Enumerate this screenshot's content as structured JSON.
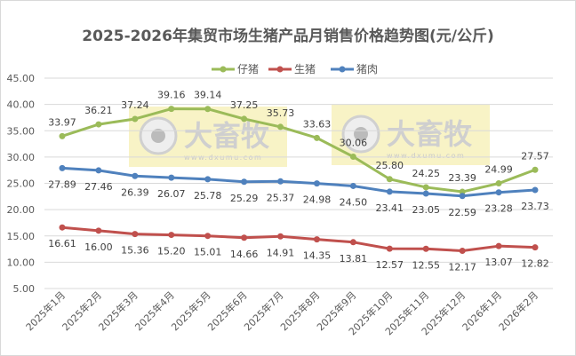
{
  "chart_data": {
    "type": "line",
    "title": "2025-2026年集贸市场生猪产品月销售价格趋势图(元/公斤)",
    "categories": [
      "2025年1月",
      "2025年2月",
      "2025年3月",
      "2025年4月",
      "2025年5月",
      "2025年6月",
      "2025年7月",
      "2025年8月",
      "2025年9月",
      "2025年10月",
      "2025年11月",
      "2025年12月",
      "2026年1月",
      "2026年2月"
    ],
    "series": [
      {
        "name": "仔猪",
        "color": "#9bbb59",
        "values": [
          33.97,
          36.21,
          37.24,
          39.16,
          39.14,
          37.25,
          35.73,
          33.63,
          30.06,
          25.8,
          24.25,
          23.39,
          24.99,
          27.57
        ]
      },
      {
        "name": "生猪",
        "color": "#c0504d",
        "values": [
          16.61,
          16.0,
          15.36,
          15.2,
          15.01,
          14.66,
          14.91,
          14.35,
          13.81,
          12.57,
          12.55,
          12.17,
          13.07,
          12.82
        ]
      },
      {
        "name": "猪肉",
        "color": "#4f81bd",
        "values": [
          27.89,
          27.46,
          26.39,
          26.07,
          25.78,
          25.29,
          25.37,
          24.98,
          24.5,
          23.41,
          23.05,
          22.59,
          23.28,
          23.73
        ]
      }
    ],
    "ylim": [
      5,
      45
    ],
    "yticks": [
      "5.00",
      "10.00",
      "15.00",
      "20.00",
      "25.00",
      "30.00",
      "35.00",
      "40.00",
      "45.00"
    ],
    "grid": true,
    "legend": "top-right",
    "xlabel": "",
    "ylabel": ""
  },
  "watermark": {
    "logo_text": "大畜牧",
    "url_text": "www.dxumu.com"
  }
}
